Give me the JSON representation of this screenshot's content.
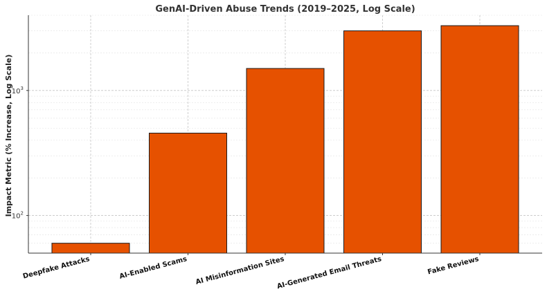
{
  "chart_data": {
    "type": "bar",
    "title": "GenAI-Driven Abuse Trends (2019–2025, Log Scale)",
    "xlabel": "",
    "ylabel": "Impact Metric (% Increase, Log Scale)",
    "yscale": "log",
    "ylim": [
      50,
      4000
    ],
    "grid": true,
    "categories": [
      "Deepfake Attacks",
      "AI-Enabled Scams",
      "AI Misinformation Sites",
      "AI-Generated Email Threats",
      "Fake Reviews"
    ],
    "values": [
      60,
      456,
      1500,
      3000,
      3300
    ],
    "yticks": [
      {
        "base": "10",
        "exp": "2",
        "value": 100
      },
      {
        "base": "10",
        "exp": "3",
        "value": 1000
      }
    ],
    "bar_color": "#e65100",
    "bar_edge_color": "#1a1a1a"
  }
}
